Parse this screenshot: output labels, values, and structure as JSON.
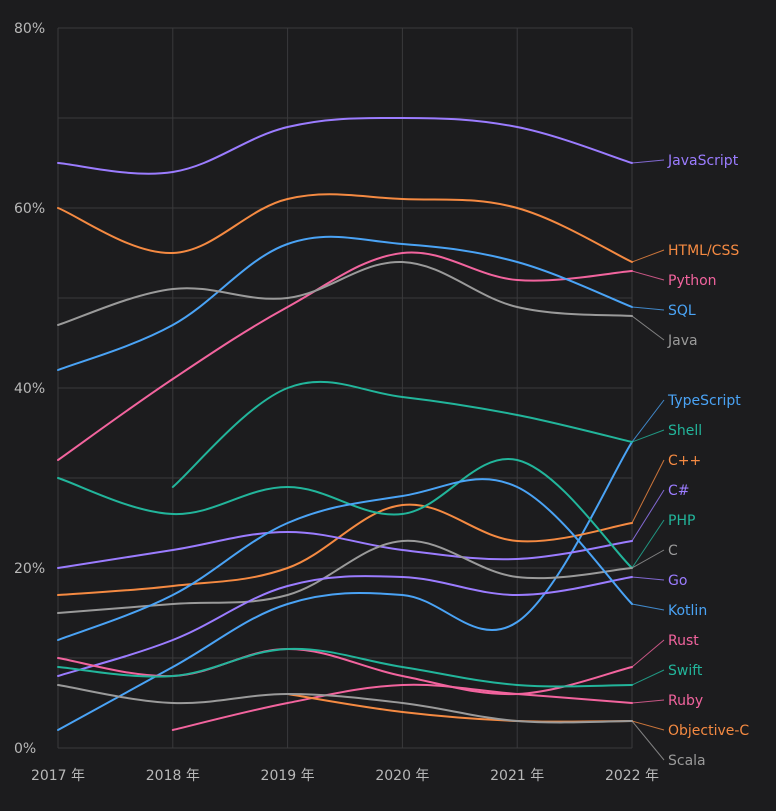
{
  "chart_data": {
    "type": "line",
    "title": "",
    "xlabel": "",
    "ylabel": "",
    "ylim": [
      0,
      80
    ],
    "grid": true,
    "legend_placement": "right (labels at line ends)",
    "x": [
      "2017 年",
      "2018 年",
      "2019 年",
      "2020 年",
      "2021 年",
      "2022 年"
    ],
    "y_ticks": [
      "0%",
      "20%",
      "40%",
      "60%",
      "80%"
    ],
    "y_tick_values": [
      0,
      20,
      40,
      60,
      80
    ],
    "series": [
      {
        "name": "JavaScript",
        "color": "#9b7cff",
        "values": [
          65,
          64,
          69,
          70,
          69,
          65
        ]
      },
      {
        "name": "HTML/CSS",
        "color": "#f58a42",
        "values": [
          60,
          55,
          61,
          61,
          60,
          54
        ]
      },
      {
        "name": "Python",
        "color": "#f2649e",
        "values": [
          32,
          41,
          49,
          55,
          52,
          53
        ]
      },
      {
        "name": "SQL",
        "color": "#4aa3f5",
        "values": [
          42,
          47,
          56,
          56,
          54,
          49
        ]
      },
      {
        "name": "Java",
        "color": "#9a9a9a",
        "values": [
          47,
          51,
          50,
          54,
          49,
          48
        ]
      },
      {
        "name": "TypeScript",
        "color": "#4aa3f5",
        "values": [
          2,
          9,
          16,
          17,
          14,
          34
        ]
      },
      {
        "name": "Shell",
        "color": "#22b59b",
        "values": [
          null,
          29,
          40,
          39,
          37,
          34
        ]
      },
      {
        "name": "C++",
        "color": "#f58a42",
        "values": [
          17,
          18,
          20,
          27,
          23,
          25
        ]
      },
      {
        "name": "C#",
        "color": "#9b7cff",
        "values": [
          20,
          22,
          24,
          22,
          21,
          23
        ]
      },
      {
        "name": "PHP",
        "color": "#22b59b",
        "values": [
          30,
          26,
          29,
          26,
          32,
          20
        ]
      },
      {
        "name": "C",
        "color": "#9a9a9a",
        "values": [
          15,
          16,
          17,
          23,
          19,
          20
        ]
      },
      {
        "name": "Go",
        "color": "#9b7cff",
        "values": [
          8,
          12,
          18,
          19,
          17,
          19
        ]
      },
      {
        "name": "Kotlin",
        "color": "#4aa3f5",
        "values": [
          12,
          17,
          25,
          28,
          29,
          16
        ]
      },
      {
        "name": "Rust",
        "color": "#f2649e",
        "values": [
          10,
          8,
          11,
          8,
          6,
          9
        ]
      },
      {
        "name": "Swift",
        "color": "#22b59b",
        "values": [
          9,
          8,
          11,
          9,
          7,
          7
        ]
      },
      {
        "name": "Ruby",
        "color": "#f2649e",
        "values": [
          null,
          2,
          5,
          7,
          6,
          5
        ]
      },
      {
        "name": "Objective-C",
        "color": "#f58a42",
        "values": [
          null,
          null,
          6,
          4,
          3,
          3
        ]
      },
      {
        "name": "Scala",
        "color": "#9a9a9a",
        "values": [
          7,
          5,
          6,
          5,
          3,
          3
        ]
      }
    ]
  }
}
